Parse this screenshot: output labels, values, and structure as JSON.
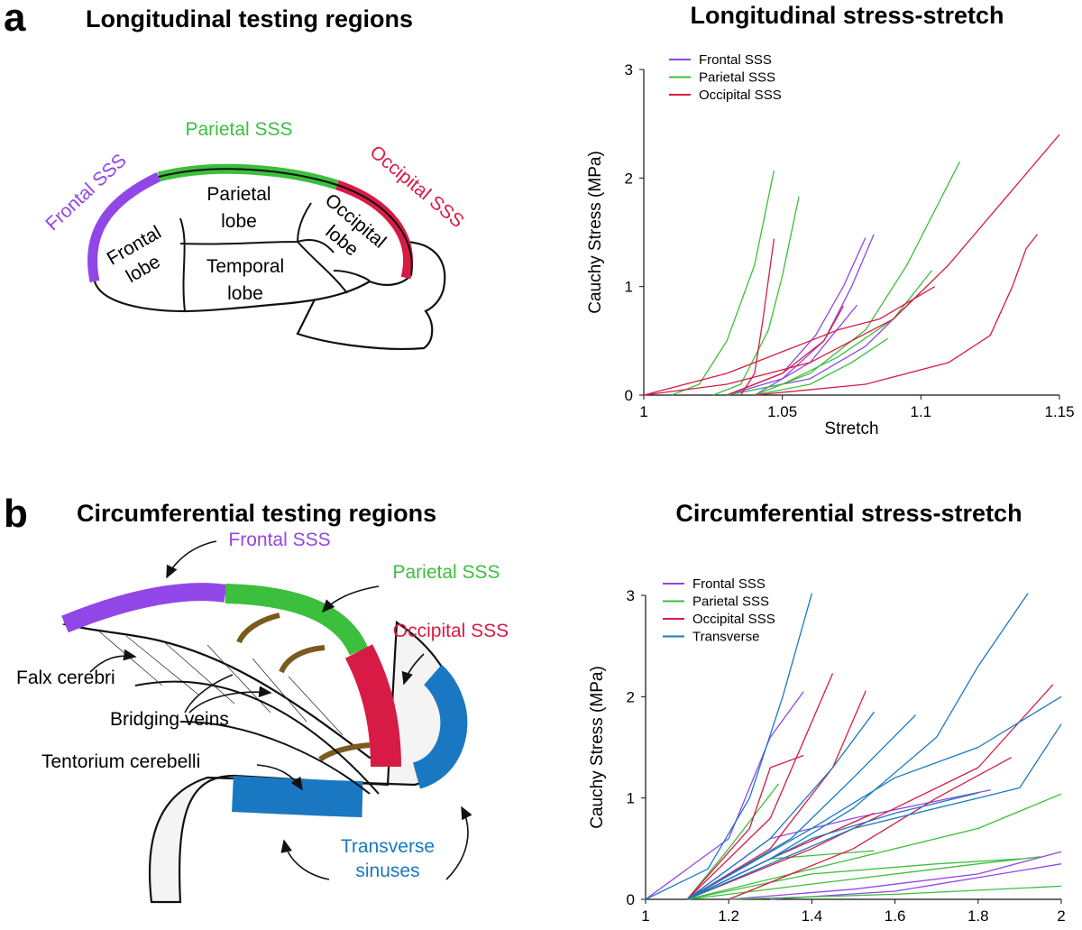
{
  "panels": [
    {
      "letter": "a",
      "title": "Longitudinal testing regions",
      "labels": [
        {
          "lines": [
            "Frontal SSS"
          ]
        },
        {
          "lines": [
            "Parietal SSS"
          ]
        },
        {
          "lines": [
            "Occipital SSS"
          ]
        },
        {
          "lines": [
            "Frontal",
            "lobe"
          ]
        },
        {
          "lines": [
            "Parietal",
            "lobe"
          ]
        },
        {
          "lines": [
            "Temporal",
            "lobe"
          ]
        },
        {
          "lines": [
            "Occipital",
            "lobe"
          ]
        }
      ]
    },
    {
      "letter": "b",
      "title": "Circumferential testing regions",
      "labels": [
        {
          "lines": [
            "Frontal SSS"
          ]
        },
        {
          "lines": [
            "Parietal SSS"
          ]
        },
        {
          "lines": [
            "Occipital SSS"
          ]
        },
        {
          "lines": [
            "Falx cerebri"
          ]
        },
        {
          "lines": [
            "Bridging veins"
          ]
        },
        {
          "lines": [
            "Tentorium cerebelli"
          ]
        },
        {
          "lines": [
            "Transverse",
            "sinuses"
          ]
        }
      ]
    }
  ],
  "chart_data": [
    {
      "type": "line",
      "title": "Longitudinal stress-stretch",
      "xlabel": "Stretch",
      "ylabel": "Cauchy Stress (MPa)",
      "xlim": [
        1,
        1.15
      ],
      "ylim": [
        0,
        3
      ],
      "xticks": [
        1,
        1.05,
        1.1,
        1.15
      ],
      "yticks": [
        0,
        1,
        2,
        3
      ],
      "legend": "upper left",
      "series": [
        {
          "name": "Frontal SSS",
          "color": "#9146e8",
          "curves": [
            {
              "x": [
                1.03,
                1.05,
                1.065,
                1.075,
                1.083
              ],
              "y": [
                0,
                0.15,
                0.5,
                1.0,
                1.48
              ]
            },
            {
              "x": [
                1.03,
                1.05,
                1.062,
                1.072,
                1.08
              ],
              "y": [
                0,
                0.2,
                0.55,
                1.0,
                1.45
              ]
            },
            {
              "x": [
                1.04,
                1.06,
                1.077
              ],
              "y": [
                0,
                0.3,
                0.83
              ]
            },
            {
              "x": [
                1.03,
                1.06,
                1.08,
                1.1
              ],
              "y": [
                0,
                0.15,
                0.45,
                0.95
              ]
            }
          ]
        },
        {
          "name": "Parietal SSS",
          "color": "#3cbf3c",
          "curves": [
            {
              "x": [
                1.01,
                1.02,
                1.03,
                1.04,
                1.047
              ],
              "y": [
                0,
                0.1,
                0.5,
                1.2,
                2.07
              ]
            },
            {
              "x": [
                1.025,
                1.035,
                1.045,
                1.05,
                1.056
              ],
              "y": [
                0,
                0.1,
                0.6,
                1.1,
                1.83
              ]
            },
            {
              "x": [
                1.04,
                1.06,
                1.08,
                1.095,
                1.105,
                1.114
              ],
              "y": [
                0,
                0.2,
                0.6,
                1.2,
                1.7,
                2.15
              ]
            },
            {
              "x": [
                1.03,
                1.05,
                1.07,
                1.09,
                1.104
              ],
              "y": [
                0,
                0.1,
                0.35,
                0.7,
                1.15
              ]
            },
            {
              "x": [
                1.04,
                1.06,
                1.075,
                1.088
              ],
              "y": [
                0,
                0.1,
                0.3,
                0.52
              ]
            }
          ]
        },
        {
          "name": "Occipital SSS",
          "color": "#d81b45",
          "curves": [
            {
              "x": [
                1.035,
                1.04,
                1.043,
                1.047
              ],
              "y": [
                0,
                0.2,
                0.7,
                1.44
              ]
            },
            {
              "x": [
                1,
                1.03,
                1.06,
                1.09,
                1.11,
                1.13,
                1.15
              ],
              "y": [
                0,
                0.1,
                0.3,
                0.7,
                1.2,
                1.8,
                2.4
              ]
            },
            {
              "x": [
                1.04,
                1.08,
                1.11,
                1.125,
                1.133,
                1.138,
                1.142
              ],
              "y": [
                0,
                0.1,
                0.3,
                0.55,
                1.0,
                1.35,
                1.48
              ]
            },
            {
              "x": [
                1,
                1.03,
                1.05,
                1.07,
                1.085,
                1.105
              ],
              "y": [
                0,
                0.2,
                0.4,
                0.6,
                0.7,
                1.0
              ]
            },
            {
              "x": [
                1.03,
                1.05,
                1.065,
                1.072
              ],
              "y": [
                0,
                0.2,
                0.5,
                0.82
              ]
            }
          ]
        }
      ]
    },
    {
      "type": "line",
      "title": "Circumferential stress-stretch",
      "xlabel": "Stretch",
      "ylabel": "Cauchy Stress (MPa)",
      "xlim": [
        1,
        2
      ],
      "ylim": [
        0,
        3
      ],
      "xticks": [
        1,
        1.2,
        1.4,
        1.6,
        1.8,
        2
      ],
      "yticks": [
        0,
        1,
        2,
        3
      ],
      "legend": "upper left",
      "series": [
        {
          "name": "Frontal SSS",
          "color": "#9146e8",
          "curves": [
            {
              "x": [
                1,
                1.2,
                1.3,
                1.38
              ],
              "y": [
                0,
                0.6,
                1.6,
                2.05
              ]
            },
            {
              "x": [
                1.2,
                1.5,
                1.8,
                2
              ],
              "y": [
                0,
                0.1,
                0.25,
                0.47
              ]
            },
            {
              "x": [
                1.3,
                1.6,
                2
              ],
              "y": [
                0,
                0.08,
                0.35
              ]
            },
            {
              "x": [
                1.1,
                1.3,
                1.5,
                1.83
              ],
              "y": [
                0,
                0.6,
                0.8,
                1.08
              ]
            }
          ]
        },
        {
          "name": "Parietal SSS",
          "color": "#3cbf3c",
          "curves": [
            {
              "x": [
                1.1,
                1.2,
                1.32
              ],
              "y": [
                0,
                0.5,
                1.14
              ]
            },
            {
              "x": [
                1.1,
                1.5,
                1.8,
                1.95
              ],
              "y": [
                0,
                0.2,
                0.35,
                0.42
              ]
            },
            {
              "x": [
                1.1,
                1.5,
                1.8,
                2
              ],
              "y": [
                0,
                0.4,
                0.7,
                1.04
              ]
            },
            {
              "x": [
                1.2,
                1.6,
                2
              ],
              "y": [
                0,
                0.05,
                0.13
              ]
            },
            {
              "x": [
                1.1,
                1.3,
                1.55
              ],
              "y": [
                0,
                0.4,
                0.48
              ]
            },
            {
              "x": [
                1.1,
                1.4,
                1.7,
                1.9
              ],
              "y": [
                0,
                0.25,
                0.35,
                0.4
              ]
            }
          ]
        },
        {
          "name": "Occipital SSS",
          "color": "#d81b45",
          "curves": [
            {
              "x": [
                1.1,
                1.3,
                1.45
              ],
              "y": [
                0,
                0.8,
                2.23
              ]
            },
            {
              "x": [
                1.1,
                1.3,
                1.45,
                1.53
              ],
              "y": [
                0,
                0.5,
                1.3,
                2.06
              ]
            },
            {
              "x": [
                1.1,
                1.25,
                1.3,
                1.38
              ],
              "y": [
                0,
                0.7,
                1.3,
                1.42
              ]
            },
            {
              "x": [
                1.1,
                1.4,
                1.6,
                1.8,
                1.98
              ],
              "y": [
                0,
                0.5,
                0.9,
                1.3,
                2.12
              ]
            },
            {
              "x": [
                1.1,
                1.3,
                1.55
              ],
              "y": [
                0,
                0.4,
                0.85
              ]
            },
            {
              "x": [
                1.2,
                1.5,
                1.7,
                1.88
              ],
              "y": [
                0,
                0.5,
                1.0,
                1.4
              ]
            }
          ]
        },
        {
          "name": "Transverse",
          "color": "#1a78c2",
          "curves": [
            {
              "x": [
                1,
                1.15,
                1.25,
                1.33,
                1.4
              ],
              "y": [
                0,
                0.3,
                1.0,
                2.0,
                3.02
              ]
            },
            {
              "x": [
                1.1,
                1.3,
                1.5,
                1.7,
                1.8,
                1.92
              ],
              "y": [
                0,
                0.4,
                0.9,
                1.6,
                2.3,
                3.02
              ]
            },
            {
              "x": [
                1.1,
                1.3,
                1.45,
                1.55
              ],
              "y": [
                0,
                0.6,
                1.3,
                1.85
              ]
            },
            {
              "x": [
                1.1,
                1.4,
                1.6,
                1.8,
                2
              ],
              "y": [
                0,
                0.7,
                1.2,
                1.5,
                2.0
              ]
            },
            {
              "x": [
                1.1,
                1.5,
                1.8,
                1.9,
                2
              ],
              "y": [
                0,
                0.7,
                1.0,
                1.1,
                1.73
              ]
            },
            {
              "x": [
                1.1,
                1.35,
                1.5,
                1.65
              ],
              "y": [
                0,
                0.6,
                1.2,
                1.82
              ]
            },
            {
              "x": [
                1.1,
                1.4,
                1.6,
                1.8
              ],
              "y": [
                0,
                0.6,
                0.85,
                1.05
              ]
            }
          ]
        }
      ]
    }
  ]
}
